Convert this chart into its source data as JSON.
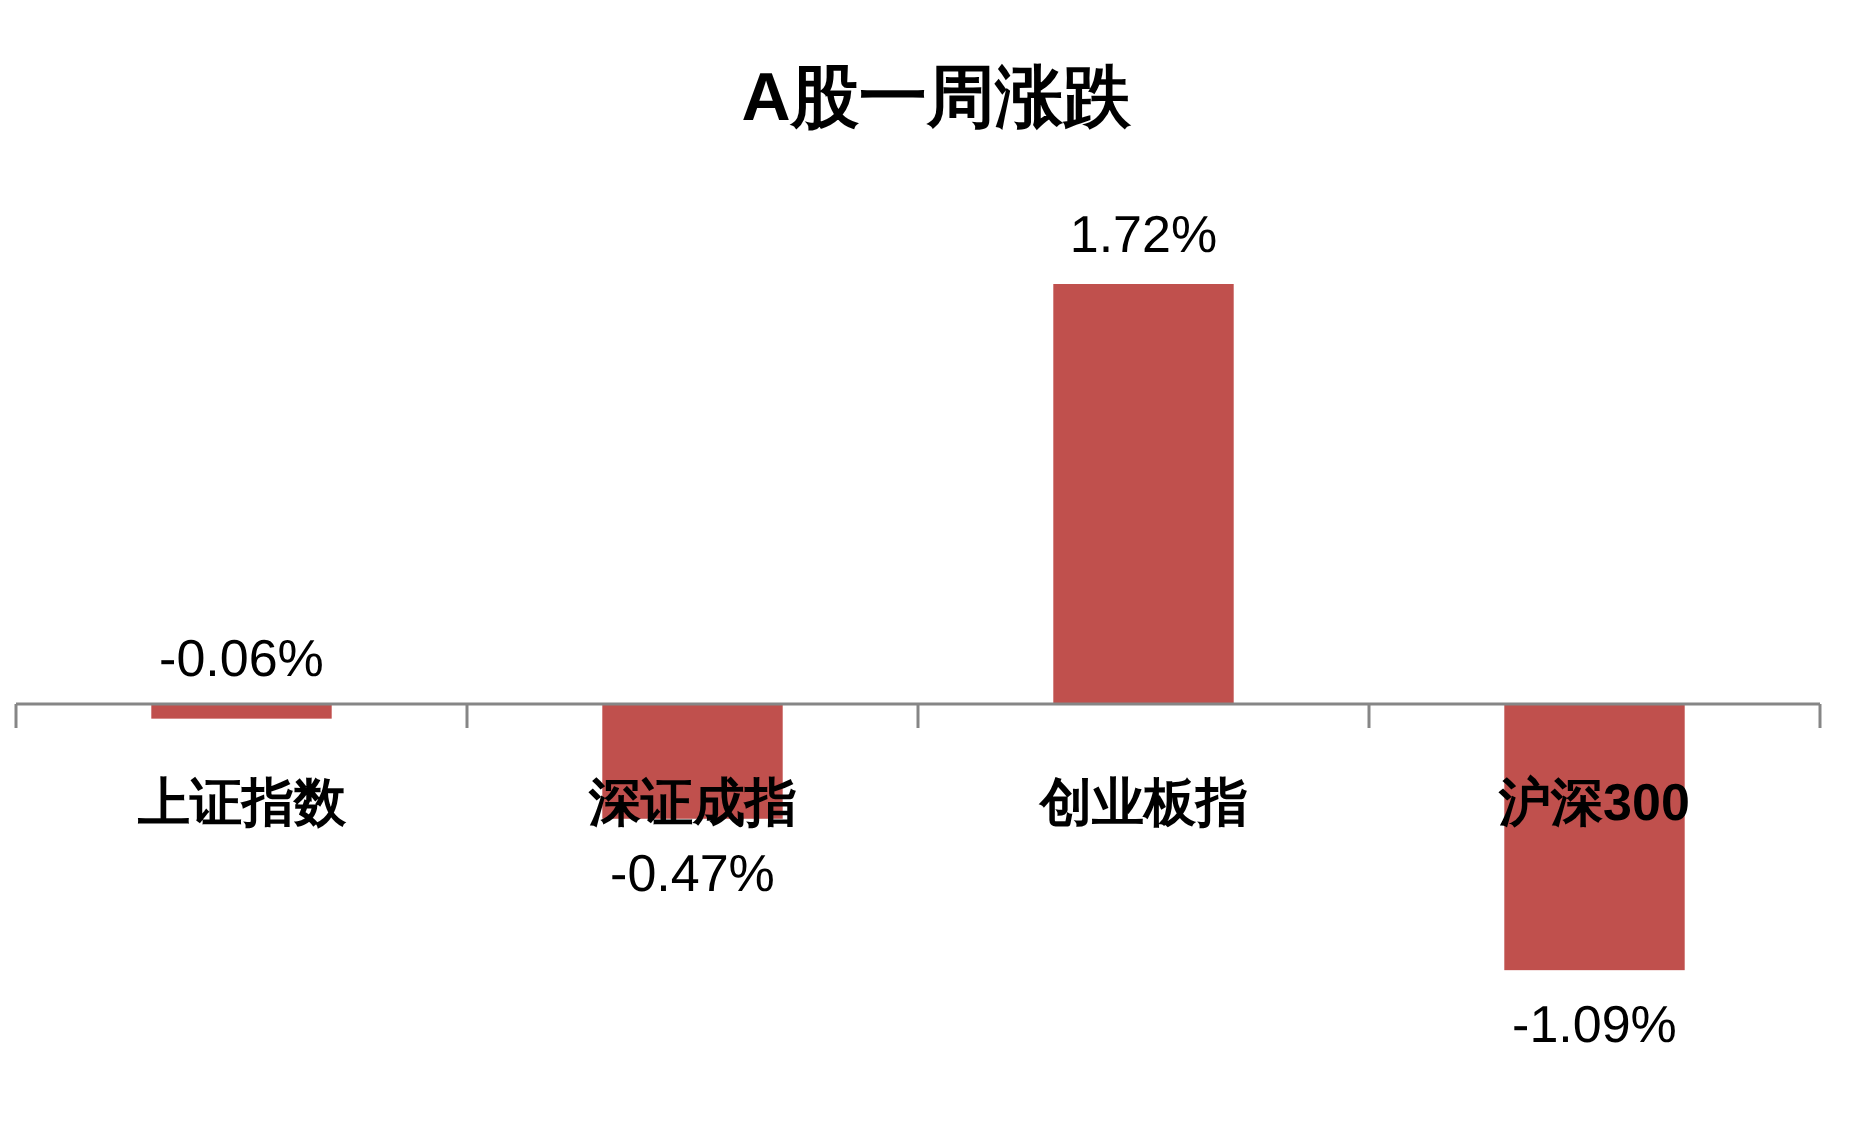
{
  "chart_data": {
    "type": "bar",
    "title": "A股一周涨跌",
    "categories": [
      "上证指数",
      "深证成指",
      "创业板指",
      "沪深300"
    ],
    "values": [
      -0.06,
      -0.47,
      1.72,
      -1.09
    ],
    "value_labels": [
      "-0.06%",
      "-0.47%",
      "1.72%",
      "-1.09%"
    ],
    "color": "#c0504d"
  }
}
